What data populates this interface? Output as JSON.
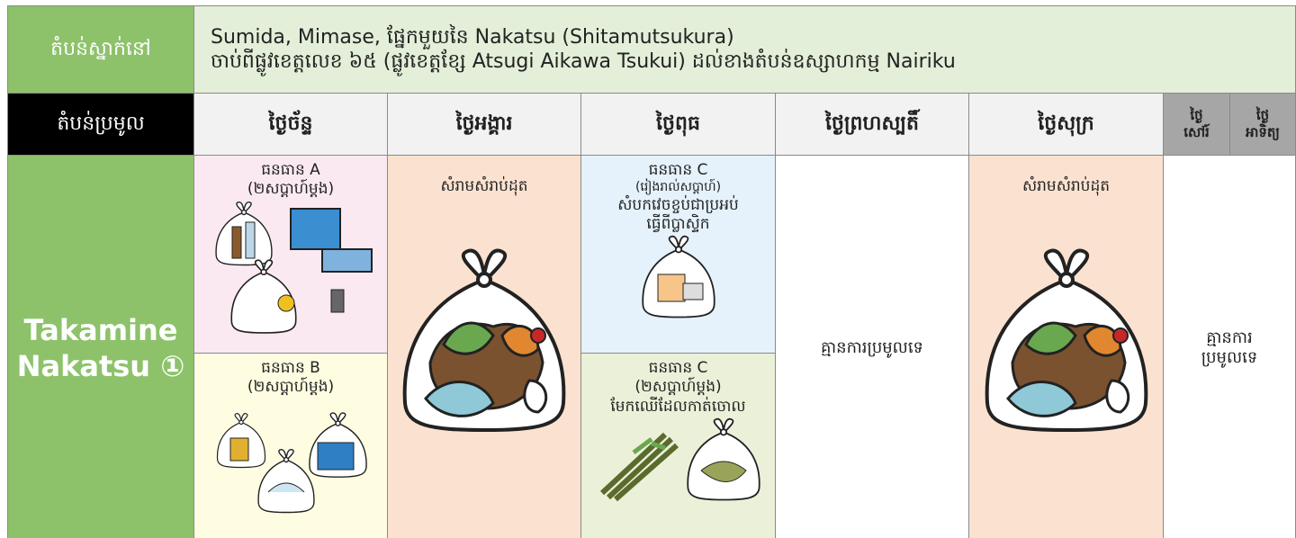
{
  "header": {
    "area_label": "តំបន់ស្នាក់នៅ",
    "area_lines": [
      "Sumida, Mimase, ផ្នែកមួយនៃ Nakatsu (Shitamutsukura)",
      "ចាប់ពីផ្លូវខេត្តលេខ ៦៥ (ផ្លូវខេត្តខ្សែ Atsugi Aikawa Tsukui) ដល់ខាងតំបន់ឧស្សាហកម្ម Nairiku"
    ]
  },
  "table": {
    "collection_label": "តំបន់ប្រមូល",
    "days": [
      [
        "ថ្ងៃច័ន្ទ"
      ],
      [
        "ថ្ងៃអង្គារ"
      ],
      [
        "ថ្ងៃពុធ"
      ],
      [
        "ថ្ងៃព្រហស្បតិ៍"
      ],
      [
        "ថ្ងៃសុក្រ"
      ],
      [
        "ថ្ងៃ",
        "សៅរ៍"
      ],
      [
        "ថ្ងៃ",
        "អាទិត្យ"
      ]
    ],
    "district": [
      "Takamine",
      "Nakatsu ①"
    ],
    "monday": {
      "top": [
        "ធនធាន A",
        "(២សប្តាហ៍ម្តង)"
      ],
      "bottom": [
        "ធនធាន B",
        "(២សប្តាហ៍ម្តង)"
      ]
    },
    "tuesday": [
      "សំរាមសំរាប់ដុត"
    ],
    "wednesday": {
      "top": [
        "ធនធាន C",
        "(រៀងរាល់សប្តាហ៍)",
        "សំបកវេចខ្ចប់ជាប្រអប់",
        "ធ្វើពីប្លាស្ទិក"
      ],
      "bottom": [
        "ធនធាន C",
        "(២សប្តាហ៍ម្តង)",
        "មែកឈើដែលកាត់ចោល"
      ]
    },
    "thursday": [
      "គ្មានការប្រមូលទេ"
    ],
    "friday": [
      "សំរាមសំរាប់ដុត"
    ],
    "weekend": [
      "គ្មានការ",
      "ប្រមូលទេ"
    ]
  }
}
